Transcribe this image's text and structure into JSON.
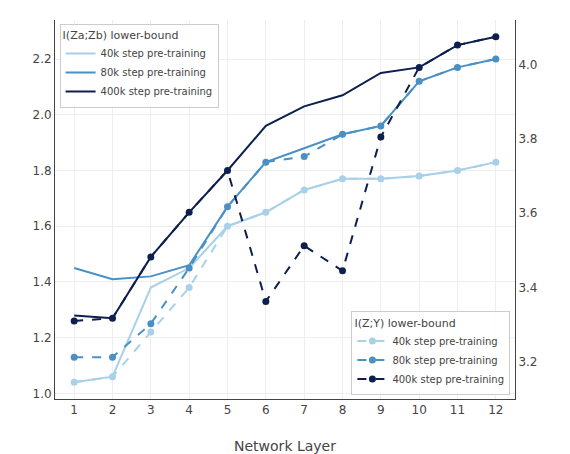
{
  "chart_data": {
    "type": "line",
    "x": [
      1,
      2,
      3,
      4,
      5,
      6,
      7,
      8,
      9,
      10,
      11,
      12
    ],
    "xlabel": "Network Layer",
    "xlim": [
      0.5,
      12.5
    ],
    "xticks": [
      1,
      2,
      3,
      4,
      5,
      6,
      7,
      8,
      9,
      10,
      11,
      12
    ],
    "ylim": [
      0.98,
      2.34
    ],
    "yticks": [
      {
        "value": 1.0,
        "label": "1.0"
      },
      1.2,
      1.4,
      1.6,
      1.8,
      {
        "value": 2.0,
        "label": "2.0"
      },
      2.2
    ],
    "y2lim": [
      3.1,
      4.12
    ],
    "y2ticks": [
      3.2,
      3.4,
      3.6,
      3.8,
      {
        "value": 4.0,
        "label": "4.0"
      }
    ],
    "grid": true,
    "legends": [
      {
        "legend": "upper left",
        "title": "I(Za;Zb) lower-bound"
      },
      {
        "legend": "lower right",
        "title": "I(Z;Y) lower-bound"
      }
    ],
    "series": [
      {
        "name": "40k step pre-training",
        "color": "#A8D0E8",
        "line_style": "solid",
        "marker": "none",
        "legend": "upper left",
        "values": [
          1.04,
          1.06,
          1.38,
          1.45,
          1.6,
          1.65,
          1.73,
          1.77,
          1.77,
          1.78,
          1.8,
          1.83
        ]
      },
      {
        "name": "80k step pre-training",
        "color": "#4A90C4",
        "line_style": "solid",
        "marker": "none",
        "legend": "upper left",
        "values": [
          1.45,
          1.41,
          1.42,
          1.46,
          1.67,
          1.83,
          1.88,
          1.93,
          1.96,
          2.12,
          2.17,
          2.2
        ]
      },
      {
        "name": "400k step pre-training",
        "color": "#0D1F4E",
        "line_style": "solid",
        "marker": "none",
        "legend": "upper left",
        "values": [
          1.28,
          1.27,
          1.49,
          1.65,
          1.8,
          1.96,
          2.03,
          2.07,
          2.15,
          2.17,
          2.25,
          2.28
        ]
      },
      {
        "name": "40k step pre-training",
        "color": "#A8D0E8",
        "line_style": "dashed",
        "marker": "circle",
        "legend": "lower right",
        "values": [
          1.04,
          1.06,
          1.22,
          1.38,
          1.6,
          1.65,
          1.73,
          1.77,
          1.77,
          1.78,
          1.8,
          1.83
        ]
      },
      {
        "name": "80k step pre-training",
        "color": "#4A90C4",
        "line_style": "dashed",
        "marker": "circle",
        "legend": "lower right",
        "values": [
          1.13,
          1.13,
          1.25,
          1.45,
          1.67,
          1.83,
          1.85,
          1.93,
          1.96,
          2.12,
          2.17,
          2.2
        ]
      },
      {
        "name": "400k step pre-training",
        "color": "#0D1F4E",
        "line_style": "dashed",
        "marker": "circle",
        "legend": "lower right",
        "values": [
          1.26,
          1.27,
          1.49,
          1.65,
          1.8,
          1.33,
          1.53,
          1.44,
          1.92,
          2.17,
          2.25,
          2.28
        ]
      }
    ]
  }
}
